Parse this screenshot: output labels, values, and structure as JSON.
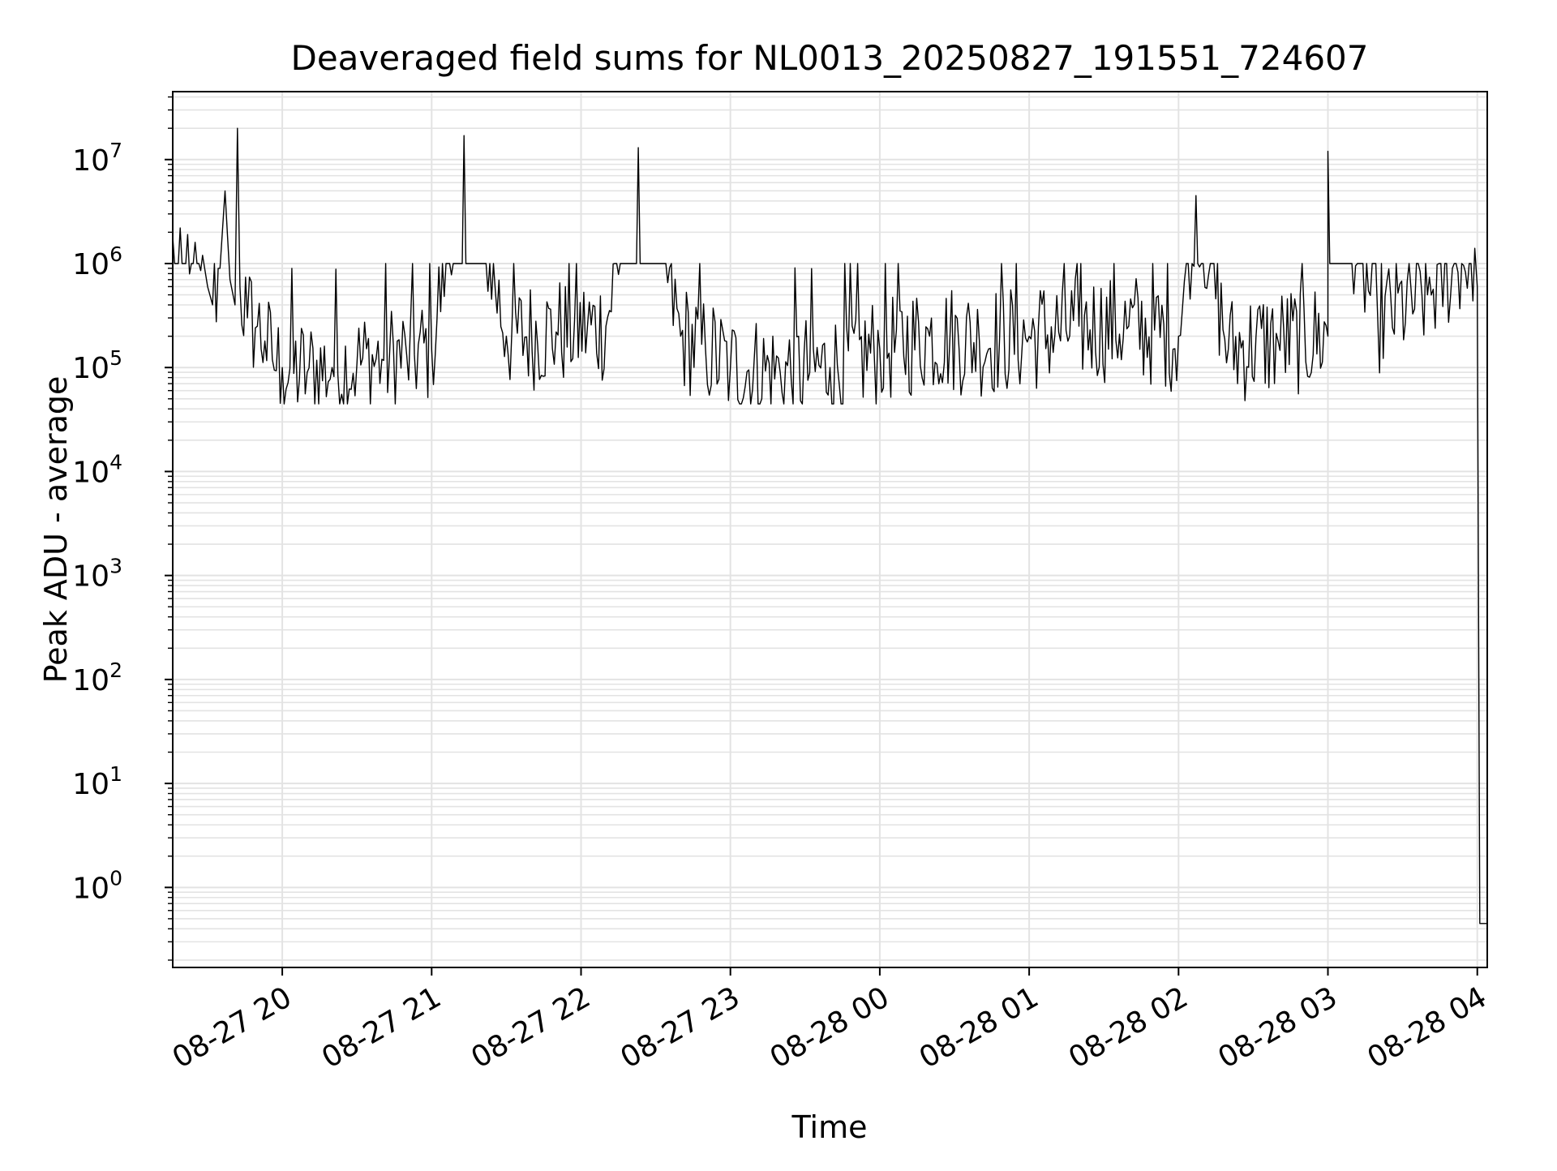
{
  "chart_data": {
    "type": "line",
    "title": "Deaveraged field sums for NL0013_20250827_191551_724607",
    "xlabel": "Time",
    "ylabel": "Peak ADU - average",
    "y_scale": "log",
    "ylim": [
      0.17,
      45000000
    ],
    "xlim": [
      "2025-08-27T19:16",
      "2025-08-28T04:04"
    ],
    "x_tick_labels": [
      "08-27 20",
      "08-27 21",
      "08-27 22",
      "08-27 23",
      "08-28 00",
      "08-28 01",
      "08-28 02",
      "08-28 03",
      "08-28 04"
    ],
    "x_ticks": [
      "2025-08-27T20:00",
      "2025-08-27T21:00",
      "2025-08-27T22:00",
      "2025-08-27T23:00",
      "2025-08-28T00:00",
      "2025-08-28T01:00",
      "2025-08-28T02:00",
      "2025-08-28T03:00",
      "2025-08-28T04:00"
    ],
    "y_tick_labels": [
      {
        "base": "10",
        "exp": "0",
        "value": 1
      },
      {
        "base": "10",
        "exp": "1",
        "value": 10
      },
      {
        "base": "10",
        "exp": "2",
        "value": 100
      },
      {
        "base": "10",
        "exp": "3",
        "value": 1000
      },
      {
        "base": "10",
        "exp": "4",
        "value": 10000
      },
      {
        "base": "10",
        "exp": "5",
        "value": 100000
      },
      {
        "base": "10",
        "exp": "6",
        "value": 1000000
      },
      {
        "base": "10",
        "exp": "7",
        "value": 10000000
      }
    ],
    "grid": "on",
    "line_color": "#000000",
    "series": [
      {
        "values_note_free": true,
        "points": [
          [
            "2025-08-27T19:16",
            1800000
          ],
          [
            "2025-08-27T19:19",
            2200000
          ],
          [
            "2025-08-27T19:22",
            1900000
          ],
          [
            "2025-08-27T19:25",
            1600000
          ],
          [
            "2025-08-27T19:28",
            1200000
          ],
          [
            "2025-08-27T19:30",
            600000
          ],
          [
            "2025-08-27T19:32",
            400000
          ],
          [
            "2025-08-27T19:35",
            900000
          ],
          [
            "2025-08-27T19:37",
            5000000
          ],
          [
            "2025-08-27T19:39",
            700000
          ],
          [
            "2025-08-27T19:41",
            400000
          ],
          [
            "2025-08-27T19:42",
            20000000
          ],
          [
            "2025-08-27T19:43",
            600000
          ],
          [
            "2025-08-27T19:46",
            300000
          ],
          [
            "2025-08-27T19:50",
            250000
          ],
          [
            "2025-08-27T19:53",
            180000
          ],
          [
            "2025-08-27T19:56",
            120000
          ],
          [
            "2025-08-27T20:00",
            100000
          ],
          [
            "2025-08-27T20:10",
            90000
          ],
          [
            "2025-08-27T20:20",
            100000
          ],
          [
            "2025-08-27T20:30",
            110000
          ],
          [
            "2025-08-27T20:40",
            120000
          ],
          [
            "2025-08-27T20:50",
            130000
          ],
          [
            "2025-08-27T21:00",
            150000
          ],
          [
            "2025-08-27T21:13",
            17000000
          ],
          [
            "2025-08-27T21:30",
            200000
          ],
          [
            "2025-08-27T21:50",
            220000
          ],
          [
            "2025-08-27T22:10",
            250000
          ],
          [
            "2025-08-27T22:23",
            13000000
          ],
          [
            "2025-08-27T22:40",
            200000
          ],
          [
            "2025-08-27T22:50",
            150000
          ],
          [
            "2025-08-27T23:00",
            100000
          ],
          [
            "2025-08-27T23:20",
            90000
          ],
          [
            "2025-08-27T23:40",
            100000
          ],
          [
            "2025-08-28T00:00",
            150000
          ],
          [
            "2025-08-28T00:20",
            200000
          ],
          [
            "2025-08-28T00:40",
            180000
          ],
          [
            "2025-08-28T01:00",
            200000
          ],
          [
            "2025-08-28T01:20",
            250000
          ],
          [
            "2025-08-28T01:40",
            250000
          ],
          [
            "2025-08-28T02:00",
            200000
          ],
          [
            "2025-08-28T02:07",
            4500000
          ],
          [
            "2025-08-28T02:20",
            150000
          ],
          [
            "2025-08-28T02:40",
            180000
          ],
          [
            "2025-08-28T03:00",
            200000
          ],
          [
            "2025-08-28T03:00",
            12000000
          ],
          [
            "2025-08-28T03:20",
            300000
          ],
          [
            "2025-08-28T03:40",
            500000
          ],
          [
            "2025-08-28T03:50",
            900000
          ],
          [
            "2025-08-28T03:59",
            1400000
          ],
          [
            "2025-08-28T04:00",
            600000
          ],
          [
            "2025-08-28T04:01",
            0.45
          ],
          [
            "2025-08-28T04:04",
            0.45
          ]
        ]
      }
    ]
  }
}
